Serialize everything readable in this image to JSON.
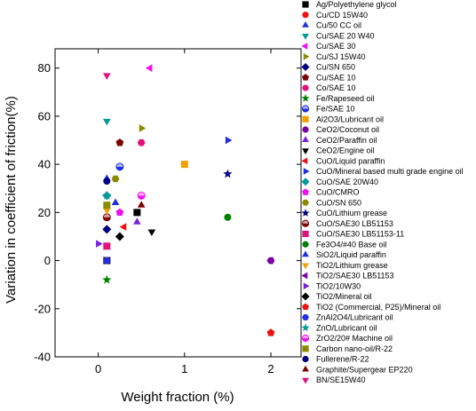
{
  "chart_data": {
    "type": "scatter",
    "title": "",
    "xlabel": "Weight fraction (%)",
    "ylabel": "Variation in coefficient of friction(%)",
    "xlim": [
      -0.5,
      2.35
    ],
    "ylim": [
      -40,
      88
    ],
    "xticks": [
      0,
      1,
      2
    ],
    "yticks": [
      -40,
      -20,
      0,
      20,
      40,
      60,
      80
    ],
    "grid": false,
    "legend_position": "right",
    "series": [
      {
        "name": "Ag/Polyethylene glycol",
        "color": "#000000",
        "marker": "square",
        "points": [
          [
            0.1,
            0
          ],
          [
            0.45,
            20
          ]
        ]
      },
      {
        "name": "Cu/CD 15W40",
        "color": "#ee1111",
        "marker": "circle",
        "points": [
          [
            0.1,
            0
          ]
        ]
      },
      {
        "name": "Cu/50 CC oil",
        "color": "#1f2ee0",
        "marker": "triangle-up",
        "points": [
          [
            0.1,
            34
          ]
        ]
      },
      {
        "name": "Cu/SAE 20 W40",
        "color": "#009999",
        "marker": "triangle-down",
        "points": [
          [
            0.1,
            58
          ]
        ]
      },
      {
        "name": "Cu/SAE 30",
        "color": "#ee11ee",
        "marker": "triangle-left",
        "points": [
          [
            0.6,
            80
          ]
        ]
      },
      {
        "name": "Cu/SJ 15W40",
        "color": "#8a8a00",
        "marker": "triangle-right",
        "points": [
          [
            0.5,
            55
          ]
        ]
      },
      {
        "name": "Cu/SN 650",
        "color": "#000080",
        "marker": "diamond",
        "points": [
          [
            0.1,
            13
          ]
        ]
      },
      {
        "name": "Cu/SAE 10",
        "color": "#7a0000",
        "marker": "pentagon",
        "points": [
          [
            0.25,
            49
          ]
        ]
      },
      {
        "name": "Co/SAE 10",
        "color": "#e0117a",
        "marker": "hexagon",
        "points": [
          [
            0.5,
            49
          ]
        ]
      },
      {
        "name": "Fe/Rapeseed oil",
        "color": "#008000",
        "marker": "star",
        "points": [
          [
            0.1,
            -8
          ]
        ]
      },
      {
        "name": "Fe/SAE 10",
        "color": "#1f2ee0",
        "marker": "half-circle",
        "points": [
          [
            0.25,
            39
          ]
        ]
      },
      {
        "name": "Al2O3/Lubricant oil",
        "color": "#f0a000",
        "marker": "square",
        "points": [
          [
            1.0,
            40
          ]
        ]
      },
      {
        "name": "CeO2/Coconut oil",
        "color": "#7a00a0",
        "marker": "circle",
        "points": [
          [
            2.0,
            0
          ]
        ]
      },
      {
        "name": "CeO2/Paraffin oil",
        "color": "#7a20e0",
        "marker": "triangle-up",
        "points": [
          [
            0.45,
            16
          ]
        ]
      },
      {
        "name": "CeO2/Engine oil",
        "color": "#000000",
        "marker": "triangle-down",
        "points": [
          [
            0.62,
            12
          ]
        ]
      },
      {
        "name": "CuO/Liquid paraffin",
        "color": "#ee1111",
        "marker": "triangle-left",
        "points": [
          [
            0.3,
            14
          ]
        ]
      },
      {
        "name": "CuO/Mineral based multi grade engine oil",
        "color": "#1f2ee0",
        "marker": "triangle-right",
        "points": [
          [
            1.5,
            50
          ]
        ]
      },
      {
        "name": "CuO/SAE 20W40",
        "color": "#009999",
        "marker": "diamond",
        "points": [
          [
            0.1,
            27
          ]
        ]
      },
      {
        "name": "CuO/CMRO",
        "color": "#ee11ee",
        "marker": "pentagon",
        "points": [
          [
            0.25,
            20
          ]
        ]
      },
      {
        "name": "CuO/SN 650",
        "color": "#8a8a00",
        "marker": "hexagon",
        "points": [
          [
            0.2,
            34
          ]
        ]
      },
      {
        "name": "CuO/Lithium grease",
        "color": "#000080",
        "marker": "star",
        "points": [
          [
            1.5,
            36
          ]
        ]
      },
      {
        "name": "CuO/SAE30 LB51153",
        "color": "#7a0000",
        "marker": "half-circle",
        "points": [
          [
            0.1,
            18
          ]
        ]
      },
      {
        "name": "CuO/SAE30 LB51153-11",
        "color": "#e0117a",
        "marker": "square",
        "points": [
          [
            0.1,
            6
          ]
        ]
      },
      {
        "name": "Fe3O4/#40 Base oil",
        "color": "#008000",
        "marker": "circle",
        "points": [
          [
            1.5,
            18
          ]
        ]
      },
      {
        "name": "SiO2/Liquid paraffin",
        "color": "#1f2ee0",
        "marker": "triangle-up",
        "points": [
          [
            0.2,
            24
          ]
        ]
      },
      {
        "name": "TiO2/Lithium grease",
        "color": "#f0a000",
        "marker": "triangle-down",
        "points": [
          [
            0.1,
            21
          ]
        ]
      },
      {
        "name": "TiO2/SAE30 LB51153",
        "color": "#7a00a0",
        "marker": "triangle-left",
        "points": [
          [
            2.0,
            0
          ]
        ]
      },
      {
        "name": "TiO2/10W30",
        "color": "#7a20e0",
        "marker": "triangle-right",
        "points": [
          [
            0.0,
            7
          ]
        ]
      },
      {
        "name": "TiO2/Mineral oil",
        "color": "#000000",
        "marker": "diamond",
        "points": [
          [
            0.25,
            10
          ]
        ]
      },
      {
        "name": "TiO2 (Commercial, P25)/Mineral oil",
        "color": "#ee1111",
        "marker": "pentagon",
        "points": [
          [
            2.0,
            -30
          ]
        ]
      },
      {
        "name": "ZnAl2O4/Lubricant oil",
        "color": "#1f2ee0",
        "marker": "hexagon",
        "points": [
          [
            0.1,
            0
          ]
        ]
      },
      {
        "name": "ZnO/Lubricant oil",
        "color": "#009999",
        "marker": "star",
        "points": [
          [
            0.1,
            27
          ]
        ]
      },
      {
        "name": "ZrO2/20# Machine oil",
        "color": "#ee11ee",
        "marker": "half-circle",
        "points": [
          [
            0.5,
            27
          ]
        ]
      },
      {
        "name": "Carbon nano-oil/R-22",
        "color": "#8a8a00",
        "marker": "square",
        "points": [
          [
            0.1,
            23
          ]
        ]
      },
      {
        "name": "Fullerene/R-22",
        "color": "#000080",
        "marker": "circle",
        "points": [
          [
            0.1,
            33
          ]
        ]
      },
      {
        "name": "Graphite/Supergear EP220",
        "color": "#7a0000",
        "marker": "triangle-up",
        "points": [
          [
            0.5,
            23
          ]
        ]
      },
      {
        "name": "BN/SE15W40",
        "color": "#e0117a",
        "marker": "triangle-down",
        "points": [
          [
            0.1,
            77
          ]
        ]
      }
    ]
  }
}
